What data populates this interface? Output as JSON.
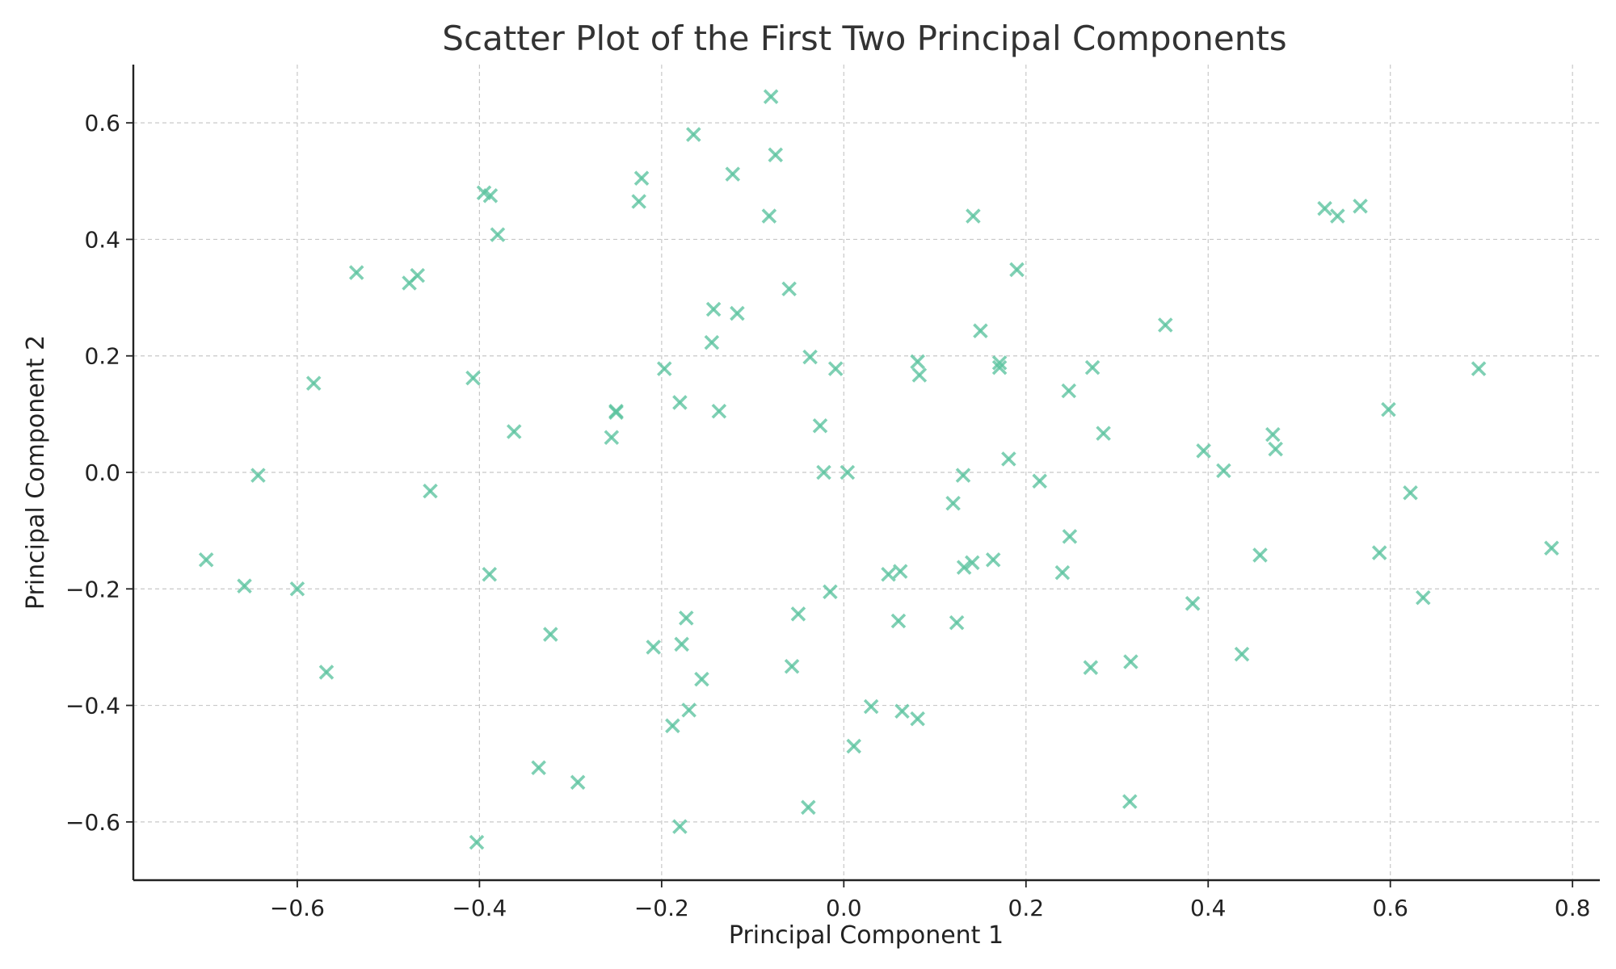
{
  "chart_data": {
    "type": "scatter",
    "title": "Scatter Plot of the First Two Principal Components",
    "xlabel": "Principal Component 1",
    "ylabel": "Principal Component 2",
    "xlim": [
      -0.78,
      0.83
    ],
    "ylim": [
      -0.7,
      0.7
    ],
    "x_ticks": [
      -0.6,
      -0.4,
      -0.2,
      0.0,
      0.2,
      0.4,
      0.6,
      0.8
    ],
    "x_tick_labels": [
      "−0.6",
      "−0.4",
      "−0.2",
      "0.0",
      "0.2",
      "0.4",
      "0.6",
      "0.8"
    ],
    "y_ticks": [
      -0.6,
      -0.4,
      -0.2,
      0.0,
      0.2,
      0.4,
      0.6
    ],
    "y_tick_labels": [
      "−0.6",
      "−0.4",
      "−0.2",
      "0.0",
      "0.2",
      "0.4",
      "0.6"
    ],
    "grid": true,
    "marker": "x",
    "color": "#5cc49f",
    "points": [
      [
        -0.08,
        0.645
      ],
      [
        -0.165,
        0.58
      ],
      [
        -0.075,
        0.545
      ],
      [
        -0.122,
        0.512
      ],
      [
        -0.222,
        0.505
      ],
      [
        -0.395,
        0.48
      ],
      [
        -0.388,
        0.475
      ],
      [
        -0.225,
        0.465
      ],
      [
        -0.082,
        0.44
      ],
      [
        0.142,
        0.44
      ],
      [
        -0.38,
        0.408
      ],
      [
        0.528,
        0.453
      ],
      [
        0.567,
        0.457
      ],
      [
        0.542,
        0.44
      ],
      [
        -0.535,
        0.343
      ],
      [
        -0.468,
        0.338
      ],
      [
        -0.477,
        0.325
      ],
      [
        -0.06,
        0.315
      ],
      [
        0.19,
        0.348
      ],
      [
        -0.143,
        0.28
      ],
      [
        -0.117,
        0.273
      ],
      [
        0.353,
        0.253
      ],
      [
        0.15,
        0.243
      ],
      [
        -0.145,
        0.223
      ],
      [
        -0.037,
        0.198
      ],
      [
        -0.009,
        0.178
      ],
      [
        -0.197,
        0.178
      ],
      [
        0.081,
        0.19
      ],
      [
        0.171,
        0.188
      ],
      [
        0.171,
        0.18
      ],
      [
        0.273,
        0.18
      ],
      [
        0.697,
        0.178
      ],
      [
        0.083,
        0.167
      ],
      [
        -0.582,
        0.153
      ],
      [
        -0.407,
        0.162
      ],
      [
        -0.18,
        0.12
      ],
      [
        0.247,
        0.14
      ],
      [
        -0.25,
        0.105
      ],
      [
        -0.25,
        0.103
      ],
      [
        -0.137,
        0.105
      ],
      [
        0.598,
        0.108
      ],
      [
        -0.362,
        0.07
      ],
      [
        -0.026,
        0.08
      ],
      [
        0.285,
        0.067
      ],
      [
        0.471,
        0.065
      ],
      [
        -0.255,
        0.06
      ],
      [
        0.474,
        0.04
      ],
      [
        0.395,
        0.037
      ],
      [
        0.181,
        0.023
      ],
      [
        0.417,
        0.003
      ],
      [
        -0.643,
        -0.005
      ],
      [
        -0.022,
        0.0
      ],
      [
        0.004,
        0.0
      ],
      [
        0.131,
        -0.005
      ],
      [
        0.215,
        -0.015
      ],
      [
        -0.454,
        -0.032
      ],
      [
        0.622,
        -0.035
      ],
      [
        0.12,
        -0.053
      ],
      [
        0.248,
        -0.11
      ],
      [
        0.777,
        -0.13
      ],
      [
        0.588,
        -0.138
      ],
      [
        0.457,
        -0.142
      ],
      [
        -0.7,
        -0.15
      ],
      [
        0.164,
        -0.15
      ],
      [
        0.141,
        -0.155
      ],
      [
        0.132,
        -0.163
      ],
      [
        0.062,
        -0.17
      ],
      [
        0.049,
        -0.175
      ],
      [
        0.24,
        -0.172
      ],
      [
        -0.389,
        -0.175
      ],
      [
        -0.658,
        -0.195
      ],
      [
        -0.6,
        -0.2
      ],
      [
        -0.015,
        -0.205
      ],
      [
        0.636,
        -0.215
      ],
      [
        0.383,
        -0.225
      ],
      [
        -0.05,
        -0.243
      ],
      [
        -0.173,
        -0.25
      ],
      [
        0.06,
        -0.255
      ],
      [
        0.124,
        -0.258
      ],
      [
        -0.322,
        -0.278
      ],
      [
        -0.209,
        -0.3
      ],
      [
        -0.178,
        -0.295
      ],
      [
        0.437,
        -0.312
      ],
      [
        0.315,
        -0.325
      ],
      [
        0.271,
        -0.335
      ],
      [
        -0.057,
        -0.333
      ],
      [
        -0.568,
        -0.343
      ],
      [
        -0.156,
        -0.355
      ],
      [
        0.03,
        -0.402
      ],
      [
        0.064,
        -0.41
      ],
      [
        -0.17,
        -0.408
      ],
      [
        0.081,
        -0.423
      ],
      [
        -0.188,
        -0.435
      ],
      [
        0.011,
        -0.47
      ],
      [
        -0.335,
        -0.507
      ],
      [
        -0.292,
        -0.532
      ],
      [
        0.314,
        -0.565
      ],
      [
        -0.039,
        -0.575
      ],
      [
        -0.18,
        -0.608
      ],
      [
        -0.403,
        -0.635
      ]
    ]
  }
}
